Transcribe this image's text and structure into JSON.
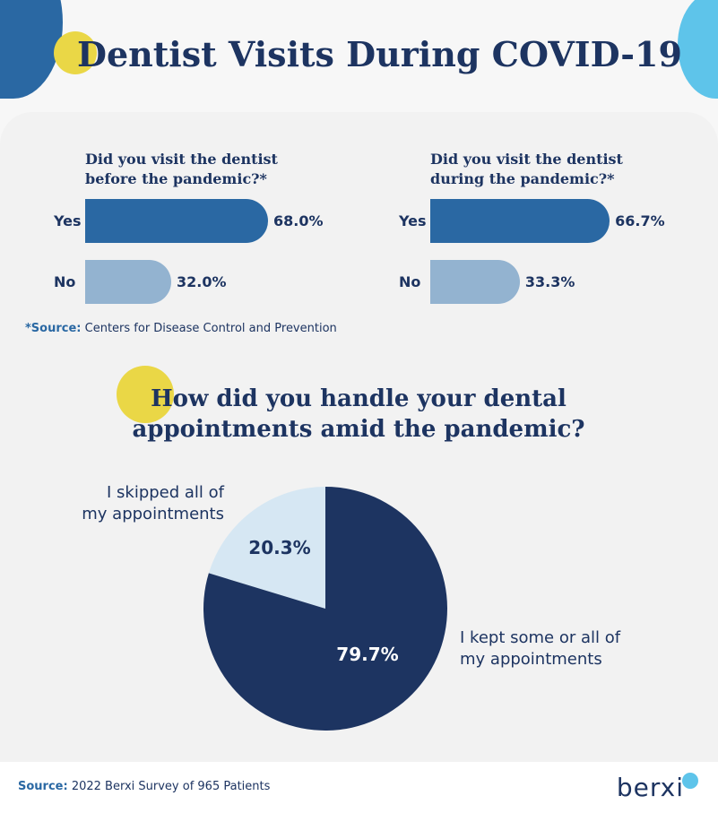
{
  "title": "Dentist Visits During COVID-19",
  "bar_section": {
    "source_label": "*Source:",
    "source_text": "Centers for Disease Control and Prevention"
  },
  "pie_section": {
    "title": "How did you handle your dental appointments amid the pandemic?"
  },
  "footer": {
    "source_label": "Source:",
    "source_text": "2022 Berxi Survey of 965 Patients",
    "logo_text": "berxi"
  },
  "colors": {
    "yes_bar": "#2a68a3",
    "no_bar": "#93b3d0",
    "pie_kept": "#1d3461",
    "pie_skipped": "#d6e7f3",
    "accent_yellow": "#ead746",
    "accent_cyan": "#5ec4ea"
  },
  "chart_data": [
    {
      "type": "bar",
      "orientation": "horizontal",
      "title": "Did you visit the dentist before the pandemic?*",
      "categories": [
        "Yes",
        "No"
      ],
      "values": [
        68.0,
        32.0
      ],
      "value_labels": [
        "68.0%",
        "32.0%"
      ],
      "xlim": [
        0,
        100
      ]
    },
    {
      "type": "bar",
      "orientation": "horizontal",
      "title": "Did you visit the dentist during the pandemic?*",
      "categories": [
        "Yes",
        "No"
      ],
      "values": [
        66.7,
        33.3
      ],
      "value_labels": [
        "66.7%",
        "33.3%"
      ],
      "xlim": [
        0,
        100
      ]
    },
    {
      "type": "pie",
      "slices": [
        {
          "label": "I skipped all of my appointments",
          "value": 20.3,
          "value_label": "20.3%"
        },
        {
          "label": "I kept some or all of my appointments",
          "value": 79.7,
          "value_label": "79.7%"
        }
      ]
    }
  ]
}
